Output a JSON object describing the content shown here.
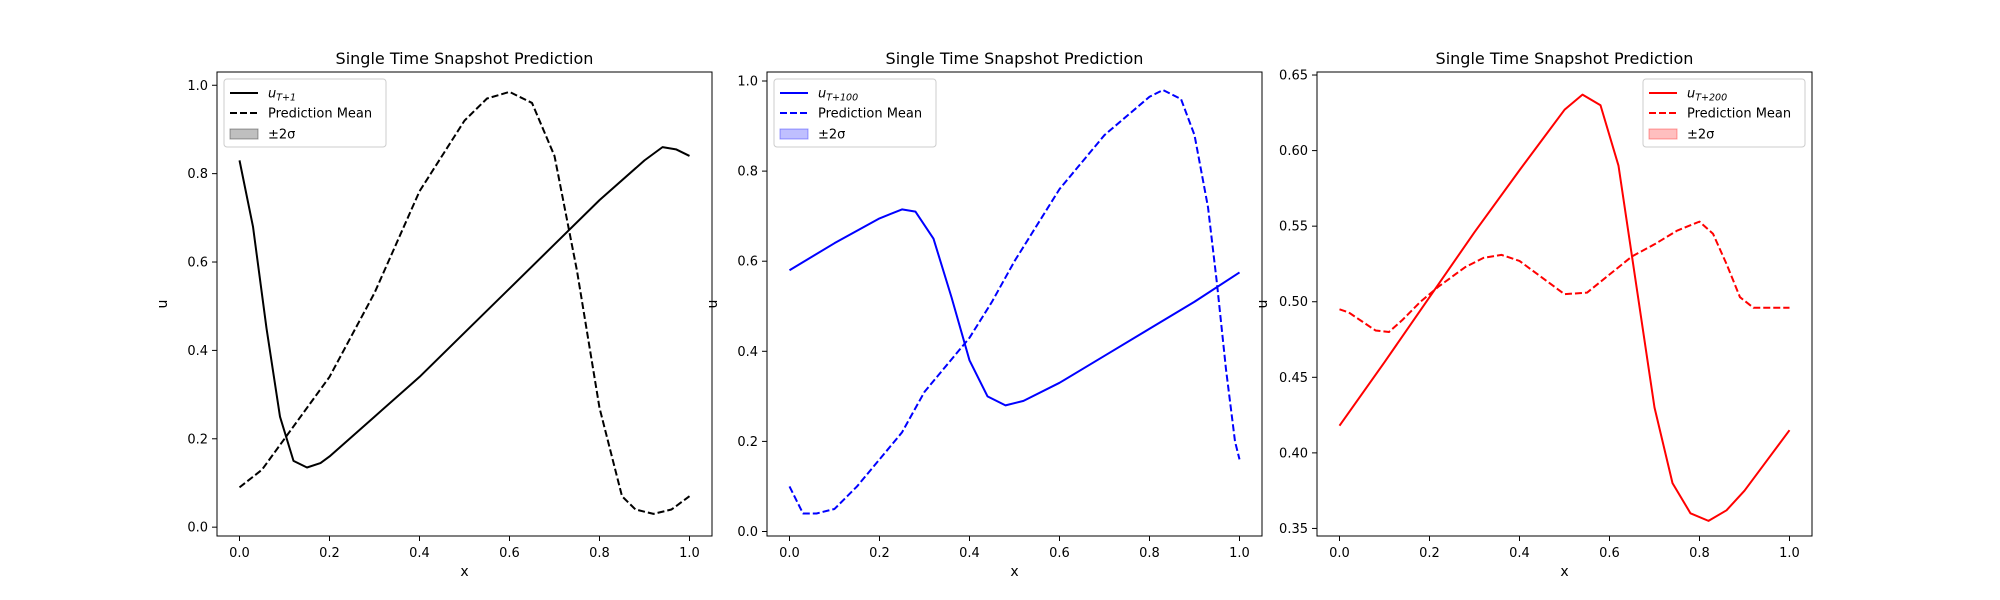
{
  "chart_data": [
    {
      "type": "line",
      "title": "Single Time Snapshot Prediction",
      "xlabel": "x",
      "ylabel": "u",
      "xlim": [
        -0.05,
        1.05
      ],
      "ylim": [
        -0.02,
        1.03
      ],
      "xticks": [
        0.0,
        0.2,
        0.4,
        0.6,
        0.8,
        1.0
      ],
      "xtick_labels": [
        "0.0",
        "0.2",
        "0.4",
        "0.6",
        "0.8",
        "1.0"
      ],
      "yticks": [
        0.0,
        0.2,
        0.4,
        0.6,
        0.8,
        1.0
      ],
      "ytick_labels": [
        "0.0",
        "0.2",
        "0.4",
        "0.6",
        "0.8",
        "1.0"
      ],
      "color": "#000000",
      "band_color": "#bfbfbf",
      "legend_position": "top-left",
      "legend": {
        "true_label_base": "u",
        "true_label_sub": "T+1",
        "mean_label": "Prediction Mean",
        "band_label": "±2σ"
      },
      "series": [
        {
          "name": "u_{T+1}",
          "style": "solid",
          "x": [
            0.0,
            0.03,
            0.06,
            0.09,
            0.12,
            0.15,
            0.18,
            0.2,
            0.3,
            0.4,
            0.5,
            0.6,
            0.7,
            0.8,
            0.9,
            0.94,
            0.97,
            1.0
          ],
          "y": [
            0.83,
            0.68,
            0.45,
            0.25,
            0.15,
            0.135,
            0.145,
            0.16,
            0.25,
            0.34,
            0.44,
            0.54,
            0.64,
            0.74,
            0.83,
            0.86,
            0.855,
            0.84
          ]
        },
        {
          "name": "Prediction Mean",
          "style": "dashed",
          "x": [
            0.0,
            0.05,
            0.1,
            0.2,
            0.3,
            0.4,
            0.5,
            0.55,
            0.6,
            0.65,
            0.7,
            0.75,
            0.8,
            0.85,
            0.88,
            0.92,
            0.96,
            1.0
          ],
          "y": [
            0.09,
            0.13,
            0.2,
            0.34,
            0.53,
            0.76,
            0.92,
            0.97,
            0.985,
            0.96,
            0.84,
            0.58,
            0.27,
            0.07,
            0.04,
            0.03,
            0.04,
            0.07
          ]
        }
      ]
    },
    {
      "type": "line",
      "title": "Single Time Snapshot Prediction",
      "xlabel": "x",
      "ylabel": "u",
      "xlim": [
        -0.05,
        1.05
      ],
      "ylim": [
        -0.01,
        1.02
      ],
      "xticks": [
        0.0,
        0.2,
        0.4,
        0.6,
        0.8,
        1.0
      ],
      "xtick_labels": [
        "0.0",
        "0.2",
        "0.4",
        "0.6",
        "0.8",
        "1.0"
      ],
      "yticks": [
        0.0,
        0.2,
        0.4,
        0.6,
        0.8,
        1.0
      ],
      "ytick_labels": [
        "0.0",
        "0.2",
        "0.4",
        "0.6",
        "0.8",
        "1.0"
      ],
      "color": "#0000ff",
      "band_color": "#bfbfff",
      "legend_position": "top-left",
      "legend": {
        "true_label_base": "u",
        "true_label_sub": "T+100",
        "mean_label": "Prediction Mean",
        "band_label": "±2σ"
      },
      "series": [
        {
          "name": "u_{T+100}",
          "style": "solid",
          "x": [
            0.0,
            0.1,
            0.2,
            0.25,
            0.28,
            0.32,
            0.36,
            0.4,
            0.44,
            0.48,
            0.52,
            0.6,
            0.7,
            0.8,
            0.9,
            1.0
          ],
          "y": [
            0.58,
            0.64,
            0.695,
            0.715,
            0.71,
            0.65,
            0.52,
            0.38,
            0.3,
            0.28,
            0.29,
            0.33,
            0.39,
            0.45,
            0.51,
            0.575
          ]
        },
        {
          "name": "Prediction Mean",
          "style": "dashed",
          "x": [
            0.0,
            0.01,
            0.03,
            0.06,
            0.1,
            0.15,
            0.2,
            0.25,
            0.3,
            0.35,
            0.4,
            0.45,
            0.5,
            0.6,
            0.7,
            0.8,
            0.83,
            0.87,
            0.9,
            0.93,
            0.95,
            0.97,
            0.99,
            1.0
          ],
          "y": [
            0.1,
            0.08,
            0.04,
            0.04,
            0.05,
            0.1,
            0.16,
            0.22,
            0.31,
            0.37,
            0.43,
            0.51,
            0.6,
            0.76,
            0.88,
            0.965,
            0.98,
            0.96,
            0.88,
            0.72,
            0.55,
            0.36,
            0.2,
            0.16
          ]
        }
      ]
    },
    {
      "type": "line",
      "title": "Single Time Snapshot Prediction",
      "xlabel": "x",
      "ylabel": "u",
      "xlim": [
        -0.05,
        1.05
      ],
      "ylim": [
        0.345,
        0.652
      ],
      "xticks": [
        0.0,
        0.2,
        0.4,
        0.6,
        0.8,
        1.0
      ],
      "xtick_labels": [
        "0.0",
        "0.2",
        "0.4",
        "0.6",
        "0.8",
        "1.0"
      ],
      "yticks": [
        0.35,
        0.4,
        0.45,
        0.5,
        0.55,
        0.6,
        0.65
      ],
      "ytick_labels": [
        "0.35",
        "0.40",
        "0.45",
        "0.50",
        "0.55",
        "0.60",
        "0.65"
      ],
      "color": "#ff0000",
      "band_color": "#ffbfbf",
      "legend_position": "top-right",
      "legend": {
        "true_label_base": "u",
        "true_label_sub": "T+200",
        "mean_label": "Prediction Mean",
        "band_label": "±2σ"
      },
      "series": [
        {
          "name": "u_{T+200}",
          "style": "solid",
          "x": [
            0.0,
            0.1,
            0.2,
            0.3,
            0.4,
            0.45,
            0.5,
            0.54,
            0.58,
            0.62,
            0.66,
            0.7,
            0.74,
            0.78,
            0.82,
            0.86,
            0.9,
            0.95,
            1.0
          ],
          "y": [
            0.418,
            0.46,
            0.503,
            0.546,
            0.587,
            0.607,
            0.627,
            0.637,
            0.63,
            0.59,
            0.51,
            0.43,
            0.38,
            0.36,
            0.355,
            0.362,
            0.375,
            0.395,
            0.415
          ]
        },
        {
          "name": "Prediction Mean",
          "style": "dashed",
          "x": [
            0.0,
            0.02,
            0.05,
            0.08,
            0.11,
            0.14,
            0.18,
            0.22,
            0.28,
            0.32,
            0.36,
            0.4,
            0.45,
            0.5,
            0.55,
            0.6,
            0.65,
            0.7,
            0.75,
            0.8,
            0.83,
            0.86,
            0.89,
            0.92,
            0.96,
            1.0
          ],
          "y": [
            0.495,
            0.493,
            0.487,
            0.481,
            0.48,
            0.488,
            0.5,
            0.51,
            0.523,
            0.529,
            0.531,
            0.527,
            0.516,
            0.505,
            0.506,
            0.518,
            0.53,
            0.538,
            0.547,
            0.553,
            0.545,
            0.525,
            0.503,
            0.496,
            0.496,
            0.496
          ]
        }
      ]
    }
  ]
}
